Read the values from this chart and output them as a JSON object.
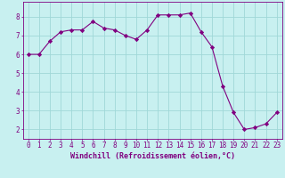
{
  "x": [
    0,
    1,
    2,
    3,
    4,
    5,
    6,
    7,
    8,
    9,
    10,
    11,
    12,
    13,
    14,
    15,
    16,
    17,
    18,
    19,
    20,
    21,
    22,
    23
  ],
  "y": [
    6.0,
    6.0,
    6.7,
    7.2,
    7.3,
    7.3,
    7.75,
    7.4,
    7.3,
    7.0,
    6.8,
    7.3,
    8.1,
    8.1,
    8.1,
    8.2,
    7.2,
    6.4,
    4.3,
    2.9,
    2.0,
    2.1,
    2.3,
    2.9
  ],
  "line_color": "#800080",
  "marker": "D",
  "marker_size": 2.2,
  "bg_color": "#c8f0f0",
  "grid_color": "#a0d8d8",
  "xlabel": "Windchill (Refroidissement éolien,°C)",
  "xlabel_color": "#800080",
  "ylim": [
    1.5,
    8.8
  ],
  "xlim": [
    -0.5,
    23.5
  ],
  "yticks": [
    2,
    3,
    4,
    5,
    6,
    7,
    8
  ],
  "xticks": [
    0,
    1,
    2,
    3,
    4,
    5,
    6,
    7,
    8,
    9,
    10,
    11,
    12,
    13,
    14,
    15,
    16,
    17,
    18,
    19,
    20,
    21,
    22,
    23
  ],
  "tick_label_color": "#800080",
  "spine_color": "#800080",
  "font_family": "monospace",
  "tick_fontsize": 5.5,
  "xlabel_fontsize": 6.0
}
